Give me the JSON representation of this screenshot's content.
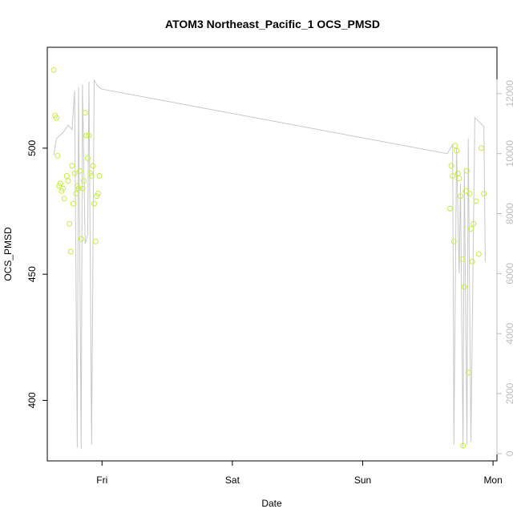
{
  "chart_data": {
    "type": "scatter",
    "title": "ATOM3 Northeast_Pacific_1 OCS_PMSD",
    "xlabel": "Date",
    "ylabel": "OCS_PMSD",
    "x_ticks": [
      "Fri",
      "Sat",
      "Sun",
      "Mon"
    ],
    "y_ticks": [
      400,
      450,
      500
    ],
    "y_right_ticks": [
      0,
      2000,
      4000,
      6000,
      8000,
      10000,
      12000
    ],
    "xlim_days": [
      -0.42,
      3.03
    ],
    "ylim": [
      376,
      540
    ],
    "y_right_lim": [
      -243,
      13545
    ],
    "grid": false,
    "legend": "none",
    "colors": {
      "points": "#c3f03c",
      "altitude_line": "#c8c8c8",
      "right_axis": "#bdbdbd"
    },
    "series": [
      {
        "kind": "points",
        "x_days": [
          -0.37,
          -0.36,
          -0.35,
          -0.34,
          -0.33,
          -0.32,
          -0.31,
          -0.3,
          -0.29,
          -0.27,
          -0.26,
          -0.25,
          -0.24,
          -0.23,
          -0.22,
          -0.21,
          -0.2,
          -0.19,
          -0.18,
          -0.17,
          -0.16,
          -0.15,
          -0.14,
          -0.13,
          -0.12,
          -0.11,
          -0.1,
          -0.09,
          -0.08,
          -0.07,
          -0.06,
          -0.05,
          -0.04,
          -0.03,
          -0.02
        ],
        "y": [
          531,
          513,
          512,
          497,
          485,
          486,
          483,
          484,
          480,
          489,
          487,
          470,
          459,
          493,
          478,
          490,
          482,
          485,
          484,
          491,
          464,
          484,
          487,
          514,
          505,
          496,
          505,
          490,
          489,
          493,
          478,
          463,
          481,
          482,
          489
        ]
      },
      {
        "kind": "points",
        "x_days": [
          2.67,
          2.68,
          2.69,
          2.7,
          2.71,
          2.72,
          2.73,
          2.74,
          2.75,
          2.76,
          2.77,
          2.78,
          2.79,
          2.8,
          2.81,
          2.82,
          2.83,
          2.84,
          2.85,
          2.87,
          2.89,
          2.91,
          2.93
        ],
        "y": [
          476,
          493,
          489,
          463,
          501,
          499,
          490,
          488,
          481,
          456,
          382,
          445,
          483,
          491,
          411,
          482,
          468,
          455,
          470,
          479,
          458,
          500,
          482
        ]
      },
      {
        "kind": "line",
        "x_days": [
          -0.37,
          -0.35,
          -0.3,
          -0.26,
          -0.23,
          -0.21,
          -0.19,
          -0.18,
          -0.16,
          -0.15,
          -0.13,
          -0.11,
          -0.1,
          -0.08,
          -0.06,
          -0.04,
          -0.02,
          0.0,
          2.65,
          2.69,
          2.7,
          2.72,
          2.74,
          2.75,
          2.77,
          2.78,
          2.8,
          2.81,
          2.83,
          2.86,
          2.93,
          2.94
        ],
        "y_right": [
          9950,
          10500,
          10700,
          10950,
          10800,
          12100,
          200,
          12200,
          150,
          12300,
          7000,
          7300,
          12400,
          300,
          12450,
          12300,
          12200,
          12150,
          10000,
          10300,
          300,
          10200,
          6000,
          9000,
          200,
          9500,
          300,
          10500,
          400,
          11200,
          10900,
          6400
        ]
      }
    ]
  }
}
